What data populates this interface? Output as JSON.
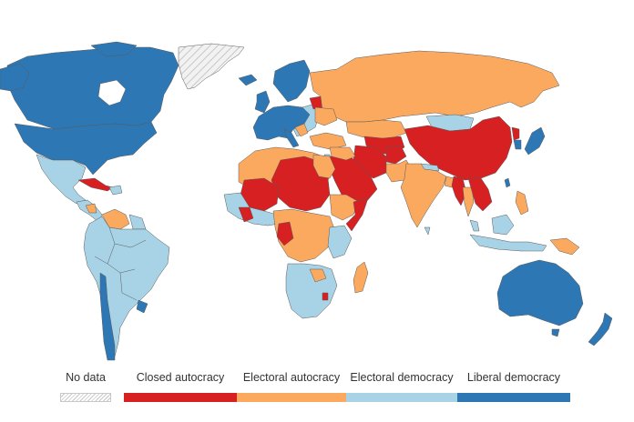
{
  "legend": {
    "items": [
      {
        "label": "No data",
        "color": "nodata-hatch"
      },
      {
        "label": "Closed autocracy",
        "color": "#d62021"
      },
      {
        "label": "Electoral autocracy",
        "color": "#fca960"
      },
      {
        "label": "Electoral democracy",
        "color": "#a8d3e6"
      },
      {
        "label": "Liberal democracy",
        "color": "#2e77b5"
      }
    ]
  },
  "colors": {
    "closed_autocracy": "#d62021",
    "electoral_autocracy": "#fca960",
    "electoral_democracy": "#a8d3e6",
    "liberal_democracy": "#2e77b5",
    "no_data": "#e6e6e6",
    "border": "#555555"
  }
}
